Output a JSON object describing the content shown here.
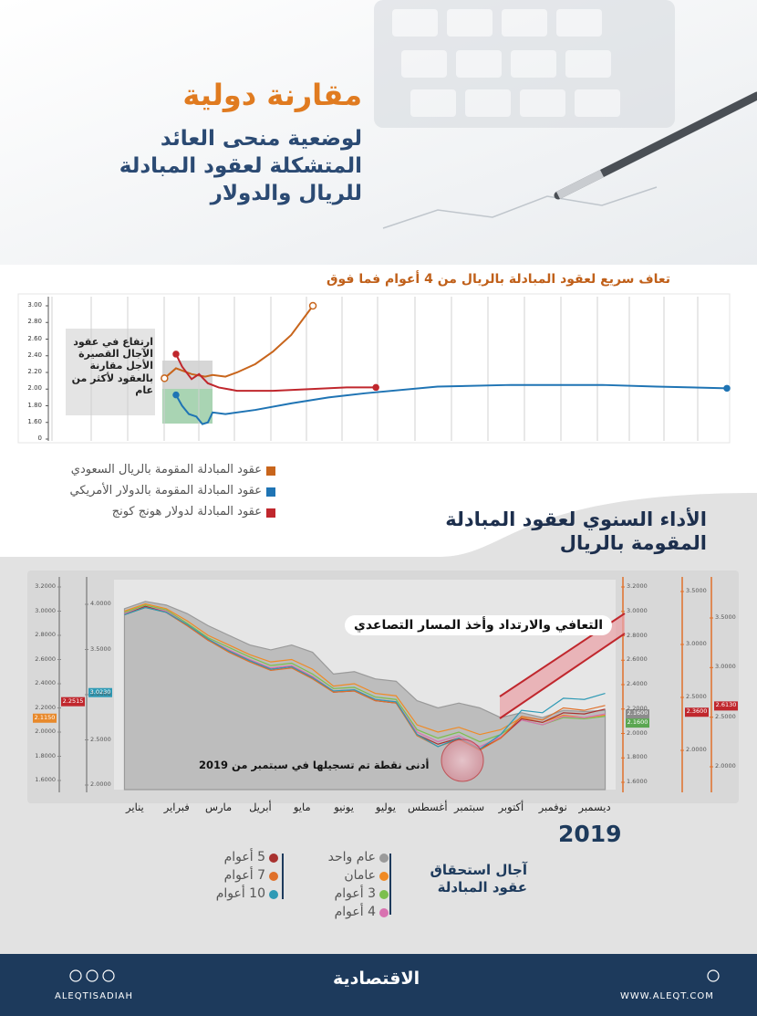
{
  "header": {
    "title": "مقارنة دولية",
    "subtitle": "لوضعية منحى العائد المتشكلة لعقود المبادلة للريال والدولار"
  },
  "chart_data": [
    {
      "type": "line",
      "title": "تعاف سريع لعقود المبادلة بالريال من 4 أعوام فما فوق",
      "annotation": "ارتفاع في عقود الآجال القصيرة الأجل مقارنة بالعقود لأكثر من عام",
      "xlim": [
        0,
        100
      ],
      "ylim": [
        0,
        3.0
      ],
      "axis_break": [
        0,
        1.4
      ],
      "yticks": [
        0,
        {
          "value": 1.6,
          "label": "1.60"
        },
        {
          "value": 1.8,
          "label": "1.80"
        },
        {
          "value": 2.0,
          "label": "2.00"
        },
        {
          "value": 2.2,
          "label": "2.20"
        },
        {
          "value": 2.4,
          "label": "2.40"
        },
        {
          "value": 2.6,
          "label": "2.60"
        },
        {
          "value": 2.8,
          "label": "2.80"
        },
        {
          "value": 3.0,
          "label": "3.00"
        }
      ],
      "grid": true,
      "series": [
        {
          "name": "عقود المبادلة المقومة بالريال السعودي",
          "color": "#c8651c",
          "x": [
            16.6,
            18.3,
            20.6,
            22.6,
            23.7,
            25.6,
            27.3,
            30,
            32.6,
            35.3,
            38.5
          ],
          "values": [
            2.13,
            2.25,
            2.18,
            2.15,
            2.17,
            2.15,
            2.2,
            2.3,
            2.45,
            2.65,
            3.0
          ]
        },
        {
          "name": "عقود المبادلة المقومة بالدولار الأمريكي",
          "color": "#1f74b4",
          "x": [
            18.3,
            19.2,
            20.2,
            21.3,
            22.2,
            23,
            23.7,
            25.6,
            30,
            35.4,
            40.8,
            46.2,
            56.9,
            67.7,
            81.2,
            89.2,
            99.6
          ],
          "values": [
            1.93,
            1.8,
            1.7,
            1.67,
            1.58,
            1.6,
            1.72,
            1.7,
            1.75,
            1.83,
            1.9,
            1.95,
            2.03,
            2.05,
            2.05,
            2.03,
            2.01
          ]
        },
        {
          "name": "عقود المبادلة لدولار هونج كونج",
          "color": "#c0272d",
          "x": [
            18.3,
            19.2,
            20.6,
            21.7,
            23,
            24.6,
            27.3,
            32.6,
            38.1,
            43.5,
            47.8
          ],
          "values": [
            2.42,
            2.27,
            2.12,
            2.18,
            2.07,
            2.02,
            1.98,
            1.98,
            2.0,
            2.02,
            2.02
          ]
        }
      ]
    },
    {
      "type": "line",
      "title": "الأداء السنوي لعقود المبادلة المقومة بالريال",
      "year": "2019",
      "legend_title": "آجال استحقاق عقود المبادلة",
      "annotations": [
        "التعافي والارتداد وأخذ المسار التصاعدي",
        "أدنى نقطة تم تسجيلها في سبتمبر من 2019"
      ],
      "categories": [
        "يناير",
        null,
        "فبراير",
        null,
        "مارس",
        null,
        "أبريل",
        null,
        "مايو",
        null,
        "يونيو",
        null,
        "يوليو",
        null,
        "أغسطس",
        null,
        "سبتمبر",
        null,
        "أكتوبر",
        null,
        "نوفمبر",
        null,
        "ديسمبر",
        null
      ],
      "ylim": [
        1.6,
        3.2
      ],
      "yticks": [
        {
          "value": 1.6,
          "label": "1.6000"
        },
        {
          "value": 1.8,
          "label": "1.8000"
        },
        {
          "value": 2.0,
          "label": "2.0000"
        },
        {
          "value": 2.2,
          "label": "2.2000"
        },
        {
          "value": 2.4,
          "label": "2.4000"
        },
        {
          "value": 2.6,
          "label": "2.6000"
        },
        {
          "value": 2.8,
          "label": "2.8000"
        },
        {
          "value": 3.0,
          "label": "3.0000"
        },
        {
          "value": 3.2,
          "label": "3.2000"
        }
      ],
      "y2lim": [
        2.0,
        4.0
      ],
      "y2ticks": [
        {
          "value": 2.0,
          "label": "2.0000"
        },
        {
          "value": 2.5,
          "label": "2.5000"
        },
        {
          "value": 3.0,
          "label": "3.0000"
        },
        {
          "value": 3.5,
          "label": "3.5000"
        },
        {
          "value": 4.0,
          "label": "4.0000"
        }
      ],
      "y3lim": [
        1.6,
        3.2
      ],
      "y3ticks": [
        {
          "value": 1.6,
          "label": "1.6000"
        },
        {
          "value": 1.8,
          "label": "1.8000"
        },
        {
          "value": 2.0,
          "label": "2.0000"
        },
        {
          "value": 2.2,
          "label": "2.2000"
        },
        {
          "value": 2.4,
          "label": "2.4000"
        },
        {
          "value": 2.6,
          "label": "2.6000"
        },
        {
          "value": 2.8,
          "label": "2.8000"
        },
        {
          "value": 3.0,
          "label": "3.0000"
        },
        {
          "value": 3.2,
          "label": "3.2000"
        }
      ],
      "y4lim": [
        2.0,
        3.5
      ],
      "y4ticks": [
        {
          "value": 2.0,
          "label": "2.0000"
        },
        {
          "value": 2.5,
          "label": "2.5000"
        },
        {
          "value": 3.0,
          "label": "3.0000"
        },
        {
          "value": 3.5,
          "label": "3.5000"
        }
      ],
      "y5lim": [
        2.0,
        3.5
      ],
      "y5ticks": [
        {
          "value": 2.0,
          "label": "2.0000"
        },
        {
          "value": 2.5,
          "label": "2.5000"
        },
        {
          "value": 3.0,
          "label": "3.0000"
        },
        {
          "value": 3.5,
          "label": "3.5000"
        }
      ],
      "axis_tags": [
        {
          "value": 2.115,
          "label": "2.1150",
          "color": "#e8892b",
          "axis": "y"
        },
        {
          "value": 2.2515,
          "label": "2.2515",
          "color": "#c0272d",
          "axis": "y"
        },
        {
          "value": 3.023,
          "label": "3.0230",
          "color": "#2e9ab5",
          "axis": "y2"
        },
        {
          "value": 2.16,
          "label": "2.1600",
          "color": "#8c8c8c",
          "axis": "y3"
        },
        {
          "value": 2.16,
          "label": "2.1600",
          "color": "#5aa651",
          "axis": "y3"
        },
        {
          "value": 2.36,
          "label": "2.3600",
          "color": "#c0272d",
          "axis": "y4"
        },
        {
          "value": 2.613,
          "label": "2.6130",
          "color": "#c0272d",
          "axis": "y5"
        }
      ],
      "series": [
        {
          "name": "عام واحد",
          "color": "#9a9a9a",
          "values": [
            3.02,
            3.08,
            3.05,
            2.98,
            2.88,
            2.8,
            2.72,
            2.68,
            2.72,
            2.66,
            2.48,
            2.5,
            2.44,
            2.42,
            2.26,
            2.2,
            2.24,
            2.2,
            2.12,
            2.16,
            2.12,
            2.18,
            2.17,
            2.18
          ]
        },
        {
          "name": "عامان",
          "color": "#f08a24",
          "values": [
            3.0,
            3.06,
            3.02,
            2.92,
            2.8,
            2.72,
            2.64,
            2.58,
            2.6,
            2.52,
            2.38,
            2.4,
            2.32,
            2.3,
            2.06,
            2.0,
            2.04,
            1.98,
            2.02,
            2.12,
            2.08,
            2.14,
            2.12,
            2.14
          ]
        },
        {
          "name": "3 أعوام",
          "color": "#7cbf4e",
          "values": [
            2.99,
            3.05,
            3.01,
            2.9,
            2.78,
            2.7,
            2.62,
            2.55,
            2.57,
            2.48,
            2.36,
            2.37,
            2.29,
            2.27,
            2.02,
            1.95,
            2.0,
            1.92,
            1.98,
            2.1,
            2.06,
            2.12,
            2.11,
            2.13
          ]
        },
        {
          "name": "4 أعوام",
          "color": "#d872b0",
          "values": [
            2.98,
            3.04,
            3.0,
            2.89,
            2.77,
            2.68,
            2.6,
            2.53,
            2.55,
            2.46,
            2.34,
            2.35,
            2.27,
            2.25,
            2.0,
            1.92,
            1.97,
            1.88,
            1.96,
            2.1,
            2.06,
            2.13,
            2.12,
            2.15
          ]
        },
        {
          "name": "5 أعوام",
          "color": "#a8312f",
          "values": [
            2.97,
            3.04,
            2.99,
            2.88,
            2.76,
            2.67,
            2.59,
            2.52,
            2.54,
            2.45,
            2.33,
            2.34,
            2.26,
            2.24,
            1.98,
            1.9,
            1.95,
            1.86,
            1.95,
            2.11,
            2.08,
            2.16,
            2.15,
            2.19
          ]
        },
        {
          "name": "7 أعوام",
          "color": "#e0702a",
          "values": [
            2.97,
            3.03,
            2.99,
            2.88,
            2.76,
            2.66,
            2.58,
            2.51,
            2.53,
            2.44,
            2.33,
            2.34,
            2.26,
            2.24,
            1.97,
            1.88,
            1.94,
            1.85,
            1.95,
            2.13,
            2.1,
            2.2,
            2.18,
            2.22
          ]
        },
        {
          "name": "10 أعوام",
          "color": "#2e9ab5",
          "values": [
            2.97,
            3.03,
            2.99,
            2.89,
            2.77,
            2.67,
            2.59,
            2.52,
            2.54,
            2.45,
            2.34,
            2.35,
            2.27,
            2.25,
            1.98,
            1.88,
            1.95,
            1.86,
            1.98,
            2.18,
            2.16,
            2.28,
            2.27,
            2.32
          ]
        }
      ]
    }
  ],
  "footer": {
    "social": "ALEQTISADIAH",
    "logo": "الاقتصادية",
    "website": "WWW.ALEQT.COM"
  }
}
